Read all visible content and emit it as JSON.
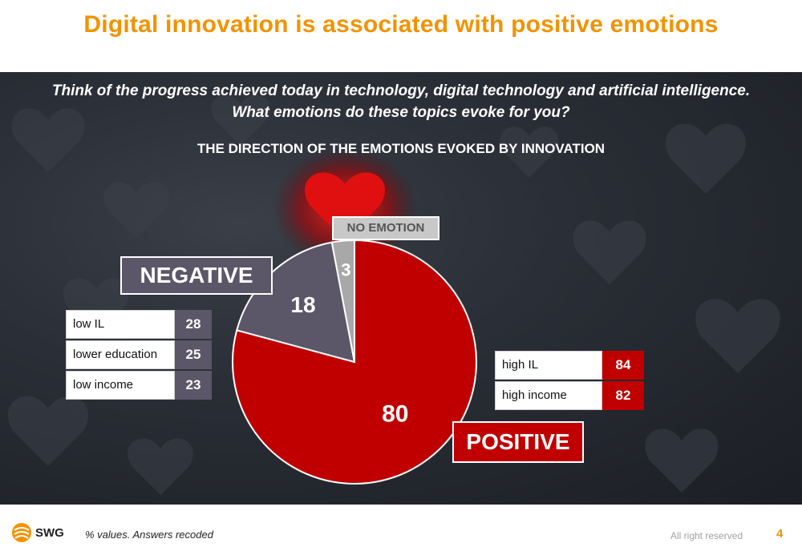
{
  "title": "Digital innovation is associated with positive emotions",
  "question": {
    "line1": "Think of the progress achieved today in technology, digital technology and artificial intelligence.",
    "line2": "What emotions do these topics evoke for you?"
  },
  "subtitle": "THE DIRECTION OF THE EMOTIONS EVOKED BY INNOVATION",
  "colors": {
    "title": "#f39200",
    "positive": "#c00000",
    "negative": "#5b5668",
    "no_emotion": "#a8a8a8"
  },
  "chart_data": {
    "type": "pie",
    "title": "THE DIRECTION OF THE EMOTIONS EVOKED BY INNOVATION",
    "slices": [
      {
        "name": "POSITIVE",
        "value": 80,
        "color": "#c00000"
      },
      {
        "name": "NEGATIVE",
        "value": 18,
        "color": "#5b5668"
      },
      {
        "name": "NO EMOTION",
        "value": 3,
        "color": "#a8a8a8"
      }
    ]
  },
  "labels": {
    "negative": "NEGATIVE",
    "positive": "POSITIVE",
    "no_emotion": "NO EMOTION"
  },
  "negative_breakdown": [
    {
      "label": "low IL",
      "value": "28"
    },
    {
      "label": "lower education",
      "value": "25"
    },
    {
      "label": "low income",
      "value": "23"
    }
  ],
  "positive_breakdown": [
    {
      "label": "high IL",
      "value": "84"
    },
    {
      "label": "high income",
      "value": "82"
    }
  ],
  "footer": {
    "logo": "SWG",
    "note": "% values. Answers recoded",
    "rights": "All right reserved",
    "page": "4"
  }
}
